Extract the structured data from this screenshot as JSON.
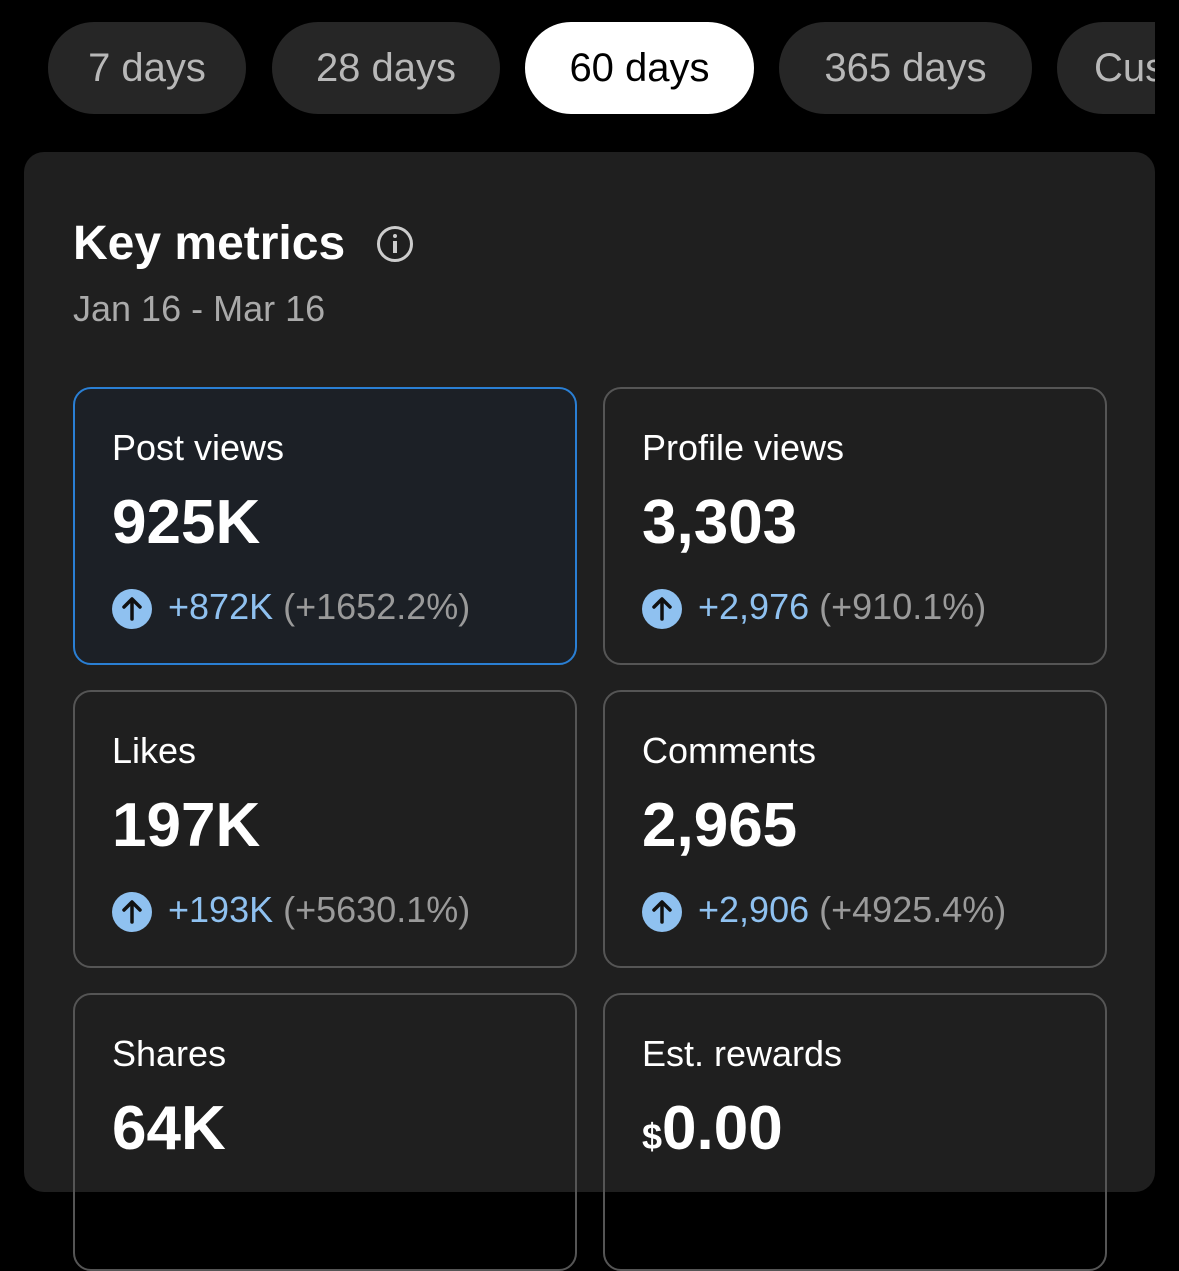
{
  "tabs": [
    {
      "label": "7 days",
      "selected": false
    },
    {
      "label": "28 days",
      "selected": false
    },
    {
      "label": "60 days",
      "selected": true
    },
    {
      "label": "365 days",
      "selected": false
    },
    {
      "label": "Custom",
      "selected": false
    }
  ],
  "panel": {
    "title": "Key metrics",
    "date_range": "Jan 16 - Mar 16",
    "metrics": [
      {
        "label": "Post views",
        "value": "925K",
        "change": "+872K",
        "percent": "(+1652.2%)",
        "selected": true
      },
      {
        "label": "Profile views",
        "value": "3,303",
        "change": "+2,976",
        "percent": "(+910.1%)",
        "selected": false
      },
      {
        "label": "Likes",
        "value": "197K",
        "change": "+193K",
        "percent": "(+5630.1%)",
        "selected": false
      },
      {
        "label": "Comments",
        "value": "2,965",
        "change": "+2,906",
        "percent": "(+4925.4%)",
        "selected": false
      },
      {
        "label": "Shares",
        "value": "64K",
        "selected": false
      },
      {
        "label": "Est. rewards",
        "currency": "$",
        "value": "0.00",
        "selected": false
      }
    ]
  }
}
